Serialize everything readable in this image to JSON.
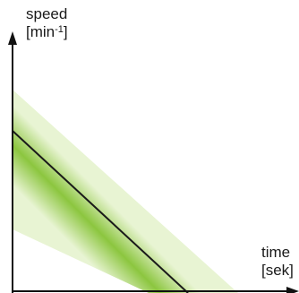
{
  "y_axis": {
    "label": "speed",
    "unit_open": "[min",
    "unit_exp": "-1",
    "unit_close": "]"
  },
  "x_axis": {
    "label": "time",
    "unit": "[sek]"
  },
  "colors": {
    "axis": "#111111",
    "line": "#1a1a1a",
    "band_center": "#8cc63f",
    "band_edge": "#e8f4d3"
  }
}
